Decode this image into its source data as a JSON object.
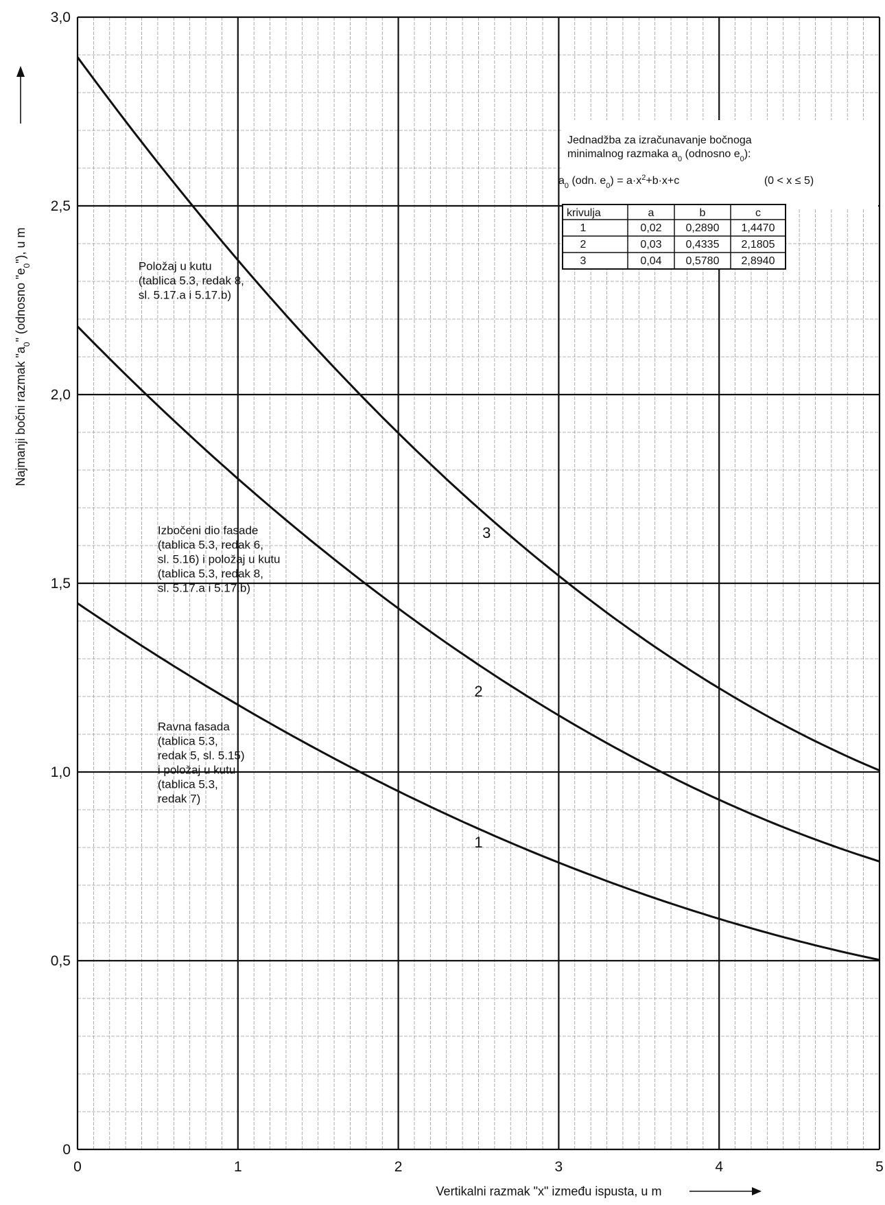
{
  "chart_data": {
    "type": "line",
    "title": "",
    "xlabel_prefix": "Vertikalni razmak \"x\" između ispusta, u m",
    "ylabel_a": "Najmanji bočni razmak \"a",
    "ylabel_a_sub": "0",
    "ylabel_mid": "\" (odnosno \"e",
    "ylabel_e_sub": "0",
    "ylabel_end": "\"), u m",
    "xlim": [
      0,
      5
    ],
    "ylim": [
      0,
      3.0
    ],
    "x_ticks": [
      "0",
      "1",
      "2",
      "3",
      "4",
      "5"
    ],
    "y_ticks": [
      "0",
      "0,5",
      "1,0",
      "1,5",
      "2,0",
      "2,5",
      "3,0"
    ],
    "grid": true,
    "series": [
      {
        "name": "1",
        "a": 0.02,
        "b": 0.289,
        "c": 1.447
      },
      {
        "name": "2",
        "a": 0.03,
        "b": 0.4335,
        "c": 2.1805
      },
      {
        "name": "3",
        "a": 0.04,
        "b": 0.578,
        "c": 2.894
      }
    ],
    "curve_labels": [
      {
        "text": "1",
        "x": 2.5,
        "y": 0.8
      },
      {
        "text": "2",
        "x": 2.5,
        "y": 1.2
      },
      {
        "text": "3",
        "x": 2.55,
        "y": 1.62
      }
    ],
    "annotations": [
      {
        "lines": [
          "Položaj u kutu",
          "(tablica 5.3, redak 8,",
          "sl. 5.17.a i 5.17.b)"
        ],
        "x": 0.38,
        "y": 2.33
      },
      {
        "lines": [
          "Izbočeni dio fasade",
          "(tablica 5.3, redak 6,",
          "sl. 5.16) i položaj u kutu",
          "(tablica 5.3, redak 8,",
          "sl. 5.17.a i 5.17.b)"
        ],
        "x": 0.5,
        "y": 1.63
      },
      {
        "lines": [
          "Ravna fasada",
          "(tablica 5.3,",
          "redak 5, sl. 5.15)",
          "i položaj u kutu",
          "(tablica 5.3,",
          "redak 7)"
        ],
        "x": 0.5,
        "y": 1.11
      }
    ],
    "equation": {
      "line1": "Jednadžba za izračunavanje bočnoga",
      "line2_pre": "minimalnog razmaka a",
      "line2_mid": " (odnosno e",
      "line2_end": "):",
      "formula_pre": "a",
      "formula_mid": " (odn. e",
      "formula_eq": ") = a·x",
      "formula_post": "+b·x+c",
      "formula_range": "(0 < x ≤ 5)",
      "sub0": "0",
      "sup2": "2"
    },
    "table": {
      "headers": [
        "krivulja",
        "a",
        "b",
        "c"
      ],
      "rows": [
        [
          "1",
          "0,02",
          "0,2890",
          "1,4470"
        ],
        [
          "2",
          "0,03",
          "0,4335",
          "2,1805"
        ],
        [
          "3",
          "0,04",
          "0,5780",
          "2,8940"
        ]
      ]
    }
  }
}
